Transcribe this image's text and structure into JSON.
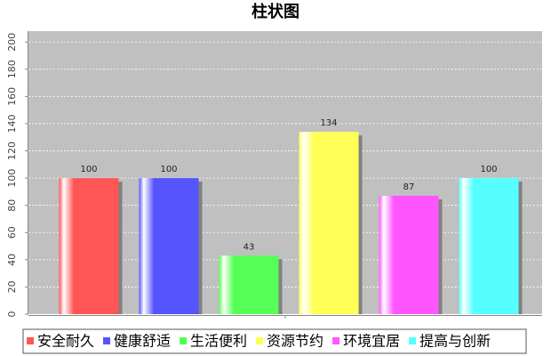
{
  "chart_data": {
    "type": "bar",
    "title": "柱状图",
    "categories": [
      "安全耐久",
      "健康舒适",
      "生活便利",
      "资源节约",
      "环境宜居",
      "提高与创新"
    ],
    "values": [
      100,
      100,
      43,
      134,
      87,
      100
    ],
    "colors": [
      "#ff5555",
      "#5555ff",
      "#55ff55",
      "#ffff55",
      "#ff55ff",
      "#55ffff"
    ],
    "ylim": [
      0,
      208
    ],
    "yticks": [
      0,
      20,
      40,
      60,
      80,
      100,
      120,
      140,
      160,
      180,
      200
    ],
    "grid": true,
    "legend": "bottom"
  }
}
